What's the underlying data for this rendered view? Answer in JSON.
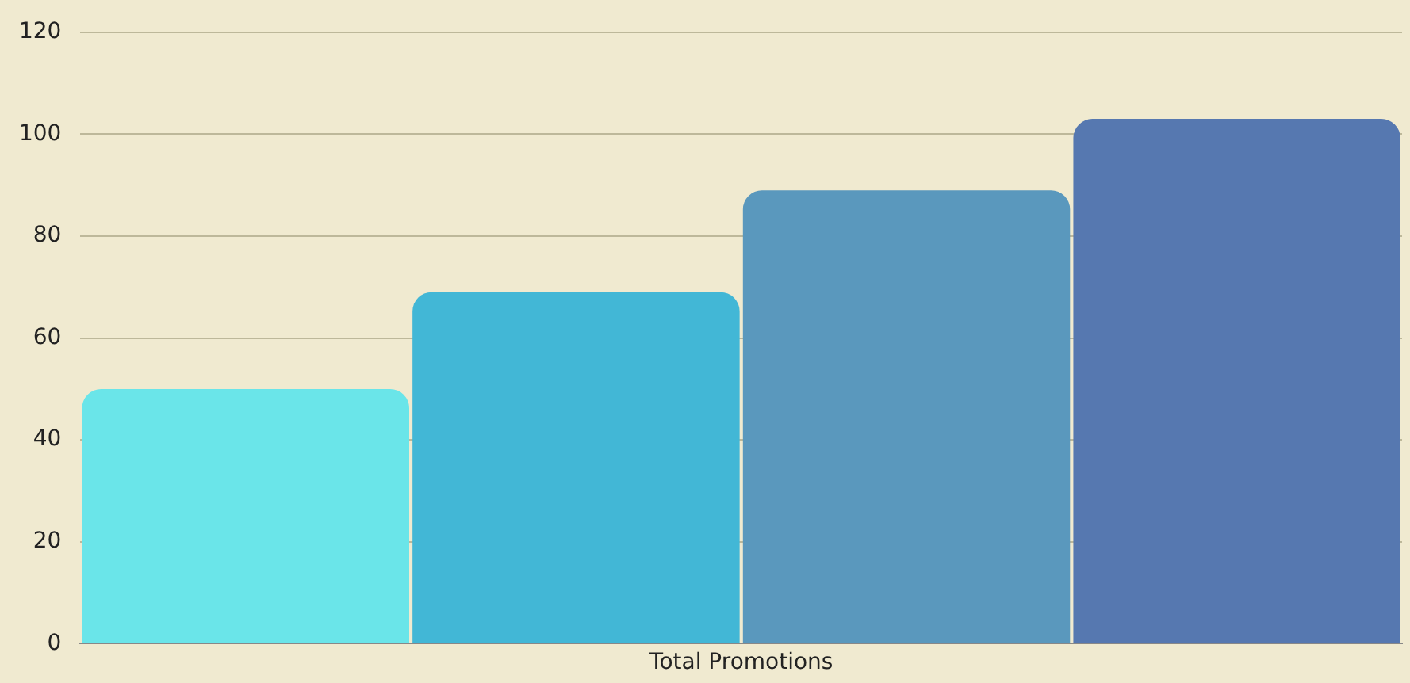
{
  "chart_data": {
    "type": "bar",
    "categories": [
      "Total Promotions"
    ],
    "series": [
      {
        "color": "#6ae5e9",
        "values": [
          50
        ]
      },
      {
        "color": "#42b7d6",
        "values": [
          69
        ]
      },
      {
        "color": "#5a98bd",
        "values": [
          89
        ]
      },
      {
        "color": "#5678b0",
        "values": [
          103
        ]
      }
    ],
    "ylim": [
      0,
      120
    ],
    "yticks": [
      0,
      20,
      40,
      60,
      80,
      100,
      120
    ],
    "grid": "y",
    "legend": false
  }
}
